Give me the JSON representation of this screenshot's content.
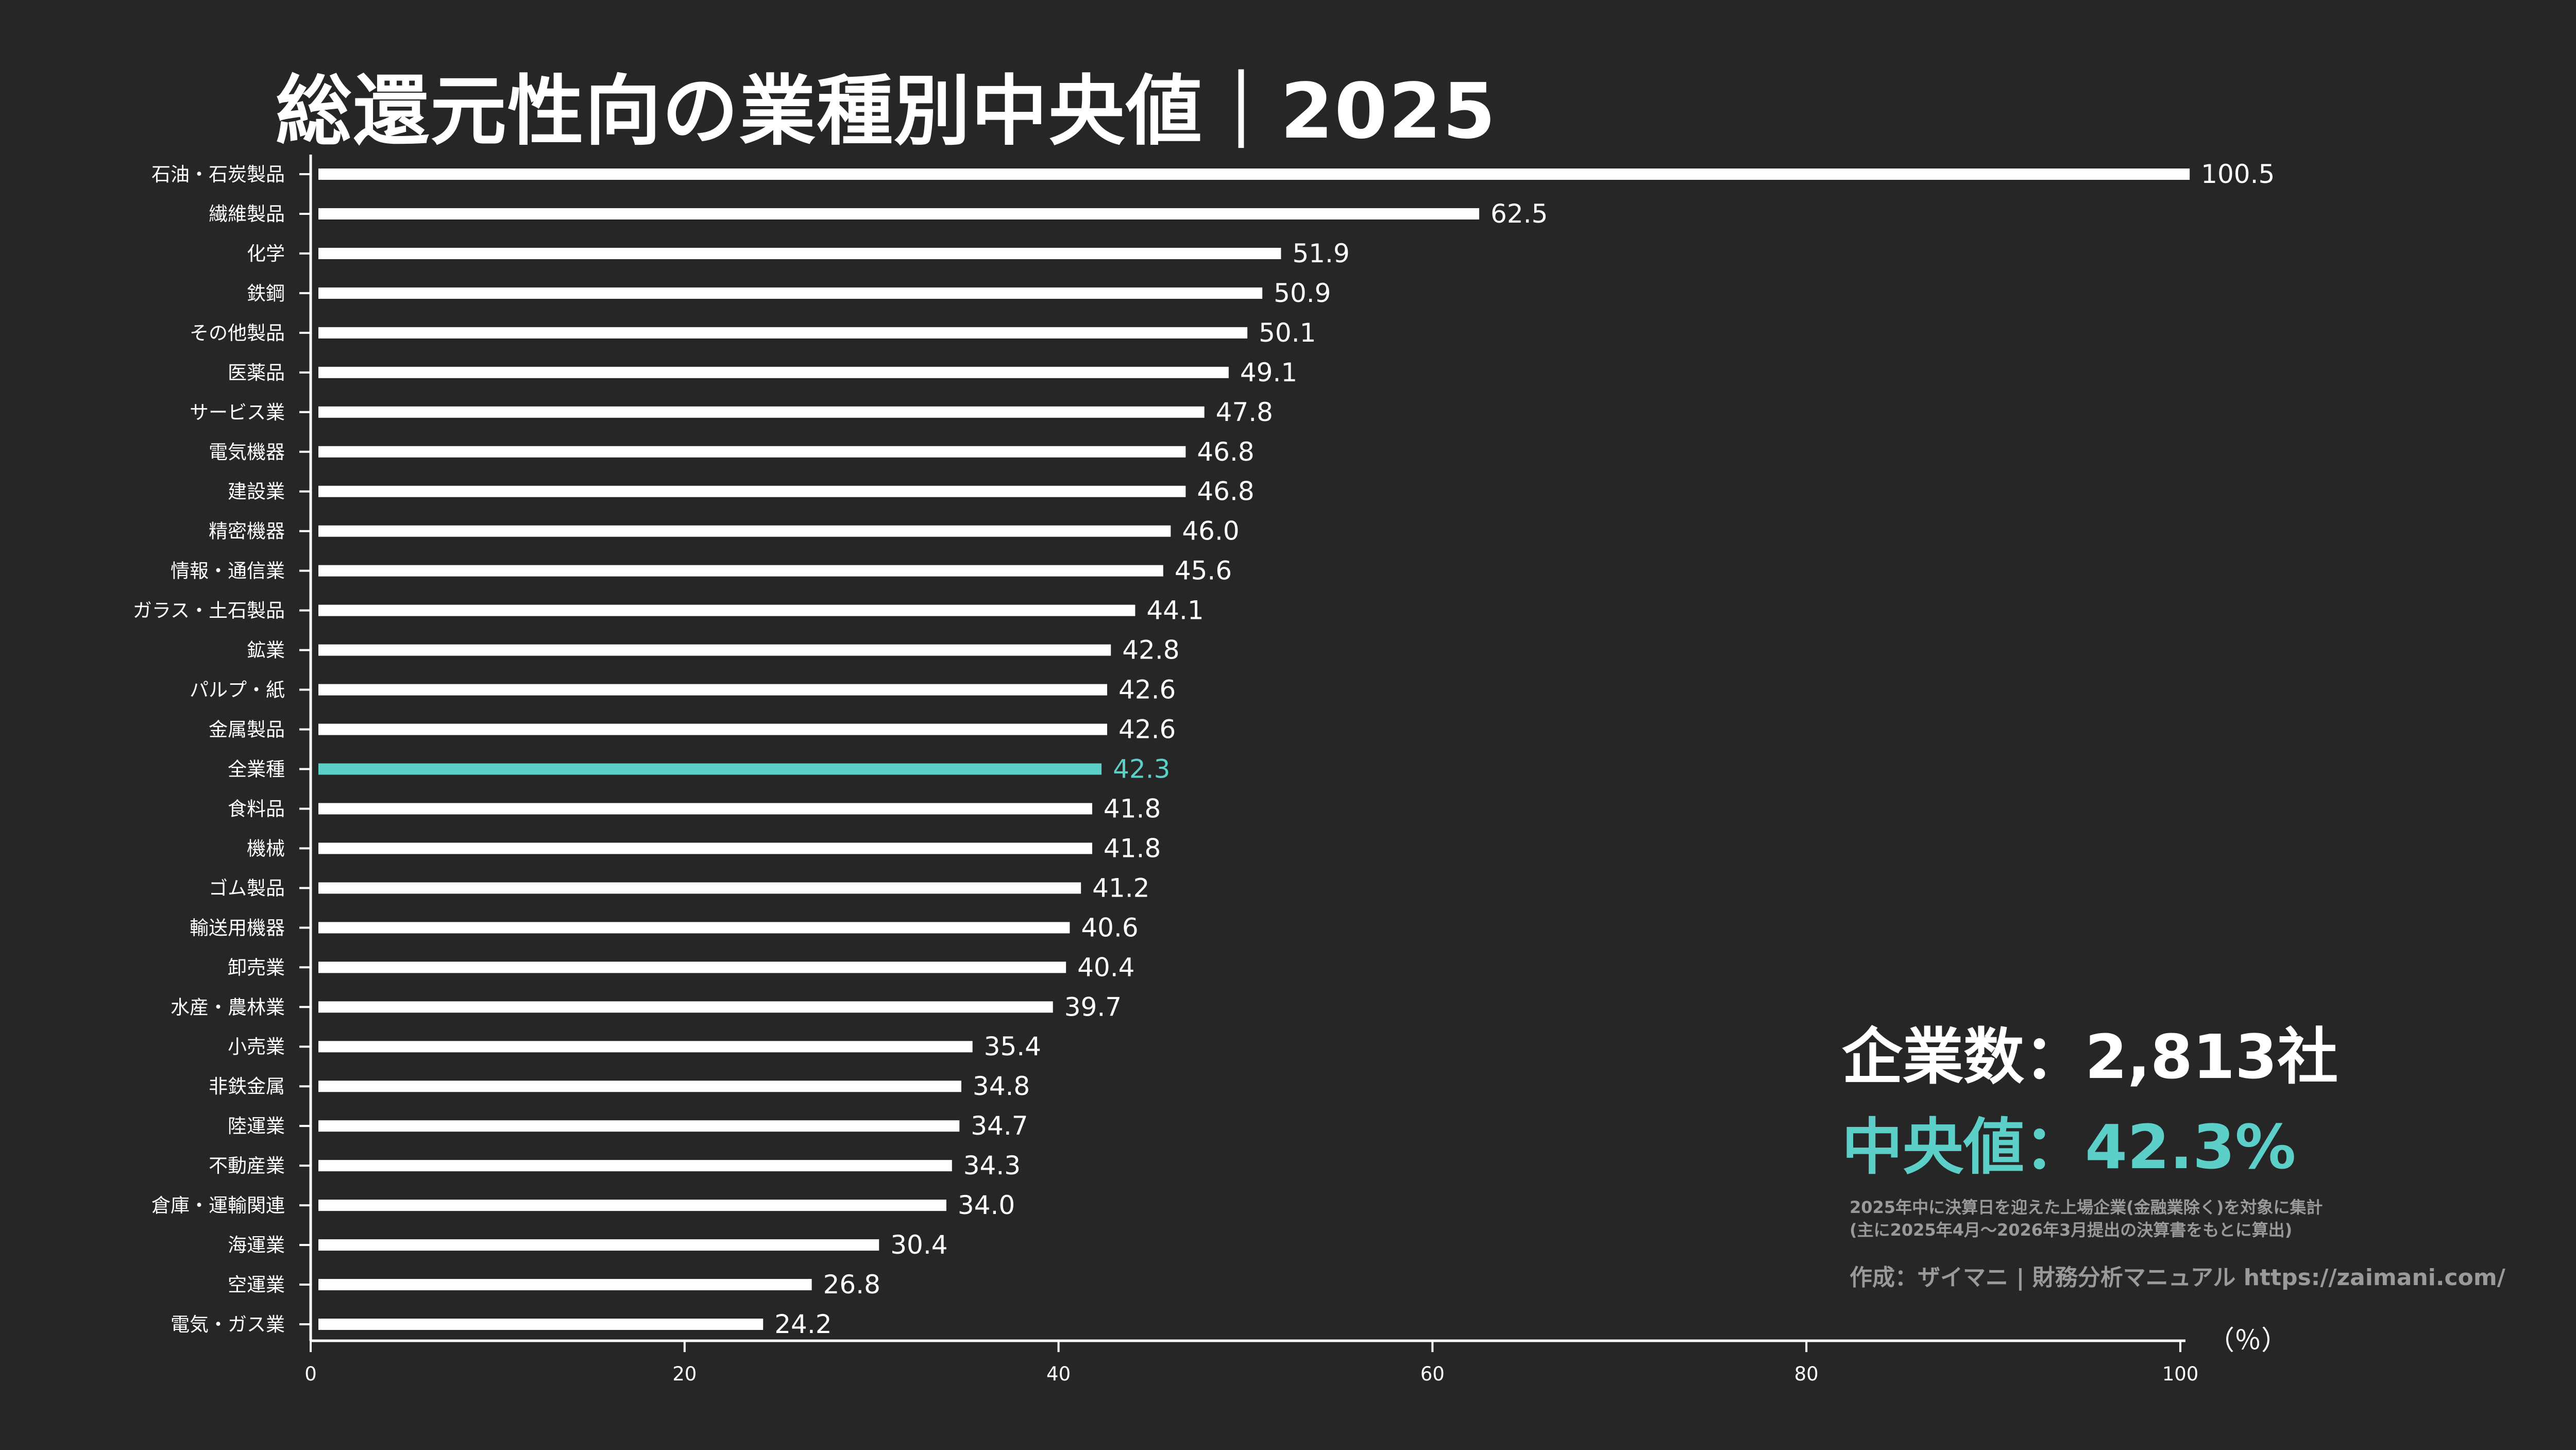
{
  "title": "総還元性向の業種別中央値｜2025",
  "colors": {
    "background": "#262626",
    "bar": "#ffffff",
    "highlight": "#5ccfc8",
    "note": "#9a9a9a"
  },
  "summary": {
    "count_label": "企業数：2,813社",
    "median_label": "中央値：42.3%",
    "note_line1": "2025年中に決算日を迎えた上場企業(金融業除く)を対象に集計",
    "note_line2": "(主に2025年4月〜2026年3月提出の決算書をもとに算出)",
    "credit": "作成：ザイマニ | 財務分析マニュアル https://zaimani.com/"
  },
  "chart_data": {
    "type": "bar",
    "orientation": "horizontal",
    "categories": [
      "石油・石炭製品",
      "繊維製品",
      "化学",
      "鉄鋼",
      "その他製品",
      "医薬品",
      "サービス業",
      "電気機器",
      "建設業",
      "精密機器",
      "情報・通信業",
      "ガラス・土石製品",
      "鉱業",
      "パルプ・紙",
      "金属製品",
      "全業種",
      "食料品",
      "機械",
      "ゴム製品",
      "輸送用機器",
      "卸売業",
      "水産・農林業",
      "小売業",
      "非鉄金属",
      "陸運業",
      "不動産業",
      "倉庫・運輸関連",
      "海運業",
      "空運業",
      "電気・ガス業"
    ],
    "values": [
      100.5,
      62.5,
      51.9,
      50.9,
      50.1,
      49.1,
      47.8,
      46.8,
      46.8,
      46.0,
      45.6,
      44.1,
      42.8,
      42.6,
      42.6,
      42.3,
      41.8,
      41.8,
      41.2,
      40.6,
      40.4,
      39.7,
      35.4,
      34.8,
      34.7,
      34.3,
      34.0,
      30.4,
      26.8,
      24.2
    ],
    "value_labels": [
      "100.5",
      "62.5",
      "51.9",
      "50.9",
      "50.1",
      "49.1",
      "47.8",
      "46.8",
      "46.8",
      "46.0",
      "45.6",
      "44.1",
      "42.8",
      "42.6",
      "42.6",
      "42.3",
      "41.8",
      "41.8",
      "41.2",
      "40.6",
      "40.4",
      "39.7",
      "35.4",
      "34.8",
      "34.7",
      "34.3",
      "34.0",
      "30.4",
      "26.8",
      "24.2"
    ],
    "highlight_category": "全業種",
    "xlim": [
      0,
      100
    ],
    "xticks": [
      "0",
      "20",
      "40",
      "60",
      "80",
      "100"
    ],
    "xlabel": "（％）",
    "grid": false
  }
}
